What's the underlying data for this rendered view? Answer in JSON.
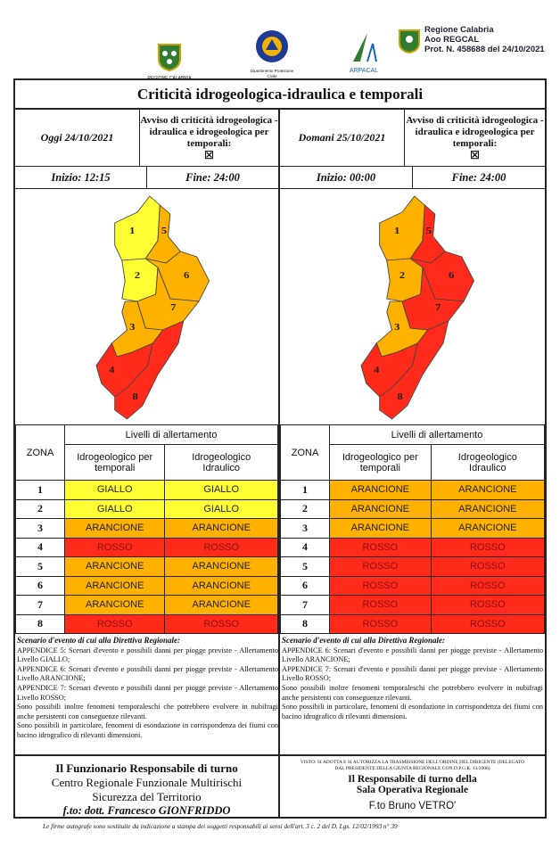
{
  "header": {
    "logo_left": "REGIONE CALABRIA",
    "logo_center": "Dipartimento Protezione Civile",
    "logo_arpacal": "ARPACAL",
    "org": "Regione Calabria",
    "aoo": "Aoo REGCAL",
    "prot": "Prot. N. 458688 del 24/10/2021"
  },
  "title": "Criticità idrogeologica-idraulica e temporali",
  "table_header": {
    "zona": "ZONA",
    "livelli": "Livelli di allertamento",
    "col1": "Idrogeologico per temporali",
    "col2": "Idrogeologico Idraulico"
  },
  "level_colors": {
    "GIALLO": "#ffff33",
    "ARANCIONE": "#ffb100",
    "ROSSO": "#ff2a1a"
  },
  "panels": [
    {
      "date": "Oggi 24/10/2021",
      "avviso": "Avviso di criticità idrogeologica - idraulica e idrogeologica per temporali:",
      "checkbox": "☒",
      "start": "Inizio: 12:15",
      "end": "Fine: 24:00",
      "rows": [
        {
          "zone": "1",
          "temporali": "GIALLO",
          "idraulico": "GIALLO"
        },
        {
          "zone": "2",
          "temporali": "GIALLO",
          "idraulico": "GIALLO"
        },
        {
          "zone": "3",
          "temporali": "ARANCIONE",
          "idraulico": "ARANCIONE"
        },
        {
          "zone": "4",
          "temporali": "ROSSO",
          "idraulico": "ROSSO"
        },
        {
          "zone": "5",
          "temporali": "ARANCIONE",
          "idraulico": "ARANCIONE"
        },
        {
          "zone": "6",
          "temporali": "ARANCIONE",
          "idraulico": "ARANCIONE"
        },
        {
          "zone": "7",
          "temporali": "ARANCIONE",
          "idraulico": "ARANCIONE"
        },
        {
          "zone": "8",
          "temporali": "ROSSO",
          "idraulico": "ROSSO"
        }
      ],
      "scenario_title": "Scenario d'evento di cui alla Direttiva Regionale:",
      "scenario": [
        "APPENDICE 5: Scenari d'evento e possibili danni per piogge previste - Allertamento Livello GIALLO;",
        "APPENDICE 6: Scenari d'evento e possibili danni per piogge previste - Allertamento Livello ARANCIONE;",
        "APPENDICE 7: Scenari d'evento e possibili danni per piogge previste - Allertamento Livello ROSSO;",
        "Sono possibili inoltre fenomeni temporaleschi che potrebbero evolvere in nubifragi anche persistenti con conseguenze rilevanti.",
        "Sono possibili in particolare, fenomeni di esondazione in corrispondenza dei fiumi con bacino idrografico di rilevanti dimensioni."
      ]
    },
    {
      "date": "Domani 25/10/2021",
      "avviso": "Avviso di criticità idrogeologica - idraulica e idrogeologica per temporali:",
      "checkbox": "☒",
      "start": "Inizio: 00:00",
      "end": "Fine: 24:00",
      "rows": [
        {
          "zone": "1",
          "temporali": "ARANCIONE",
          "idraulico": "ARANCIONE"
        },
        {
          "zone": "2",
          "temporali": "ARANCIONE",
          "idraulico": "ARANCIONE"
        },
        {
          "zone": "3",
          "temporali": "ARANCIONE",
          "idraulico": "ARANCIONE"
        },
        {
          "zone": "4",
          "temporali": "ROSSO",
          "idraulico": "ROSSO"
        },
        {
          "zone": "5",
          "temporali": "ROSSO",
          "idraulico": "ROSSO"
        },
        {
          "zone": "6",
          "temporali": "ROSSO",
          "idraulico": "ROSSO"
        },
        {
          "zone": "7",
          "temporali": "ROSSO",
          "idraulico": "ROSSO"
        },
        {
          "zone": "8",
          "temporali": "ROSSO",
          "idraulico": "ROSSO"
        }
      ],
      "scenario_title": "Scenario d'evento di cui alla Direttiva Regionale:",
      "scenario": [
        "APPENDICE 6: Scenari d'evento e possibili danni per piogge previste - Allertamento Livello ARANCIONE;",
        "APPENDICE 7: Scenari d'evento e possibili danni per piogge previste - Allertamento Livello ROSSO;",
        "Sono possibili inoltre fenomeni temporaleschi che potrebbero evolvere in nubifragi anche persistenti con conseguenze rilevanti.",
        "Sono possibili in particolare, fenomeni di esondazione in corrispondenza dei fiumi con bacino idrografico di rilevanti dimensioni."
      ]
    }
  ],
  "footer_left": {
    "l1": "Il Funzionario Responsabile di turno",
    "l2": "Centro Regionale Funzionale Multirischi",
    "l3": "Sicurezza del Territorio",
    "l4": "f.to: dott. Francesco GIONFRIDDO"
  },
  "footer_right": {
    "visto": "VISTO: SI ADOTTA E SI AUTORIZZA LA TRASMISSIONE DELL'ORDINE DEL DIRIGENTE (DELEGATO DAL PRESIDENTE DELLA GIUNTA REGIONALE CON D.P.G.R. 13/2006)",
    "l1": "Il Responsabile di turno della",
    "l2": "Sala Operativa Regionale",
    "l3": "F.to Bruno VETRO'"
  },
  "note": "Le firme autografe sono sostituite da indicazione a stampa dei soggetti responsabili ai sensi dell'art. 3 c. 2 del D. Lgs. 12/02/1993 n° 39"
}
